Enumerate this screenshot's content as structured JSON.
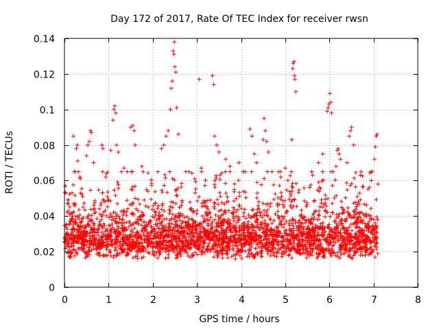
{
  "chart_data": {
    "type": "scatter",
    "title": "Day 172 of 2017, Rate Of TEC Index for receiver rwsn",
    "xlabel": "GPS time / hours",
    "ylabel": "ROTI / TECUs",
    "xlim": [
      0,
      8
    ],
    "ylim": [
      0,
      0.14
    ],
    "xticks": [
      "0",
      "1",
      "2",
      "3",
      "4",
      "5",
      "6",
      "7",
      "8"
    ],
    "yticks": [
      "0",
      "0.02",
      "0.04",
      "0.06",
      "0.08",
      "0.1",
      "0.12",
      "0.14"
    ],
    "xtick_values": [
      0,
      1,
      2,
      3,
      4,
      5,
      6,
      7,
      8
    ],
    "ytick_values": [
      0,
      0.02,
      0.04,
      0.06,
      0.08,
      0.1,
      0.12,
      0.14
    ],
    "grid": true,
    "series": [
      {
        "name": "ROTI",
        "marker": "plus",
        "color": "#ff0000",
        "bulk_x_range": [
          0.0,
          7.1
        ],
        "bulk_baseline_y": 0.022,
        "bulk_min_y": 0.009,
        "bulk_max_y": 0.065,
        "point_count_estimate": 3000,
        "notable_points": [
          {
            "x": 0.02,
            "y": 0.057
          },
          {
            "x": 0.03,
            "y": 0.053
          },
          {
            "x": 0.08,
            "y": 0.049
          },
          {
            "x": 0.12,
            "y": 0.041
          },
          {
            "x": 0.2,
            "y": 0.085
          },
          {
            "x": 0.22,
            "y": 0.065
          },
          {
            "x": 0.27,
            "y": 0.078
          },
          {
            "x": 0.29,
            "y": 0.08
          },
          {
            "x": 0.3,
            "y": 0.071
          },
          {
            "x": 0.35,
            "y": 0.062
          },
          {
            "x": 0.5,
            "y": 0.074
          },
          {
            "x": 0.53,
            "y": 0.08
          },
          {
            "x": 0.56,
            "y": 0.082
          },
          {
            "x": 0.59,
            "y": 0.088
          },
          {
            "x": 0.61,
            "y": 0.087
          },
          {
            "x": 0.66,
            "y": 0.07
          },
          {
            "x": 0.85,
            "y": 0.08
          },
          {
            "x": 0.87,
            "y": 0.078
          },
          {
            "x": 1.05,
            "y": 0.077
          },
          {
            "x": 1.1,
            "y": 0.094
          },
          {
            "x": 1.12,
            "y": 0.1
          },
          {
            "x": 1.14,
            "y": 0.102
          },
          {
            "x": 1.16,
            "y": 0.098
          },
          {
            "x": 1.18,
            "y": 0.08
          },
          {
            "x": 1.22,
            "y": 0.076
          },
          {
            "x": 1.35,
            "y": 0.067
          },
          {
            "x": 1.42,
            "y": 0.065
          },
          {
            "x": 1.5,
            "y": 0.09
          },
          {
            "x": 1.55,
            "y": 0.091
          },
          {
            "x": 1.58,
            "y": 0.088
          },
          {
            "x": 1.6,
            "y": 0.08
          },
          {
            "x": 1.75,
            "y": 0.068
          },
          {
            "x": 2.2,
            "y": 0.078
          },
          {
            "x": 2.25,
            "y": 0.08
          },
          {
            "x": 2.3,
            "y": 0.085
          },
          {
            "x": 2.35,
            "y": 0.088
          },
          {
            "x": 2.4,
            "y": 0.1
          },
          {
            "x": 2.42,
            "y": 0.112
          },
          {
            "x": 2.44,
            "y": 0.116
          },
          {
            "x": 2.46,
            "y": 0.133
          },
          {
            "x": 2.48,
            "y": 0.131
          },
          {
            "x": 2.49,
            "y": 0.138
          },
          {
            "x": 2.5,
            "y": 0.124
          },
          {
            "x": 2.52,
            "y": 0.121
          },
          {
            "x": 2.54,
            "y": 0.101
          },
          {
            "x": 2.58,
            "y": 0.086
          },
          {
            "x": 2.75,
            "y": 0.065
          },
          {
            "x": 3.05,
            "y": 0.117
          },
          {
            "x": 3.1,
            "y": 0.067
          },
          {
            "x": 3.35,
            "y": 0.119
          },
          {
            "x": 3.38,
            "y": 0.114
          },
          {
            "x": 3.4,
            "y": 0.085
          },
          {
            "x": 3.45,
            "y": 0.08
          },
          {
            "x": 3.5,
            "y": 0.076
          },
          {
            "x": 3.65,
            "y": 0.072
          },
          {
            "x": 3.75,
            "y": 0.068
          },
          {
            "x": 3.95,
            "y": 0.07
          },
          {
            "x": 4.05,
            "y": 0.065
          },
          {
            "x": 4.2,
            "y": 0.089
          },
          {
            "x": 4.25,
            "y": 0.085
          },
          {
            "x": 4.3,
            "y": 0.075
          },
          {
            "x": 4.35,
            "y": 0.07
          },
          {
            "x": 4.5,
            "y": 0.083
          },
          {
            "x": 4.52,
            "y": 0.095
          },
          {
            "x": 4.55,
            "y": 0.088
          },
          {
            "x": 4.58,
            "y": 0.082
          },
          {
            "x": 4.62,
            "y": 0.076
          },
          {
            "x": 4.7,
            "y": 0.065
          },
          {
            "x": 4.85,
            "y": 0.065
          },
          {
            "x": 4.9,
            "y": 0.062
          },
          {
            "x": 5.0,
            "y": 0.067
          },
          {
            "x": 5.15,
            "y": 0.083
          },
          {
            "x": 5.17,
            "y": 0.123
          },
          {
            "x": 5.18,
            "y": 0.126
          },
          {
            "x": 5.2,
            "y": 0.127
          },
          {
            "x": 5.21,
            "y": 0.119
          },
          {
            "x": 5.22,
            "y": 0.117
          },
          {
            "x": 5.24,
            "y": 0.11
          },
          {
            "x": 5.6,
            "y": 0.065
          },
          {
            "x": 5.62,
            "y": 0.063
          },
          {
            "x": 5.75,
            "y": 0.07
          },
          {
            "x": 5.85,
            "y": 0.075
          },
          {
            "x": 5.95,
            "y": 0.099
          },
          {
            "x": 5.97,
            "y": 0.101
          },
          {
            "x": 5.99,
            "y": 0.103
          },
          {
            "x": 6.01,
            "y": 0.109
          },
          {
            "x": 6.03,
            "y": 0.104
          },
          {
            "x": 6.05,
            "y": 0.098
          },
          {
            "x": 6.15,
            "y": 0.068
          },
          {
            "x": 6.18,
            "y": 0.077
          },
          {
            "x": 6.2,
            "y": 0.078
          },
          {
            "x": 6.22,
            "y": 0.075
          },
          {
            "x": 6.25,
            "y": 0.072
          },
          {
            "x": 6.4,
            "y": 0.07
          },
          {
            "x": 6.45,
            "y": 0.085
          },
          {
            "x": 6.48,
            "y": 0.088
          },
          {
            "x": 6.5,
            "y": 0.09
          },
          {
            "x": 6.55,
            "y": 0.08
          },
          {
            "x": 6.7,
            "y": 0.063
          },
          {
            "x": 6.95,
            "y": 0.06
          },
          {
            "x": 7.02,
            "y": 0.072
          },
          {
            "x": 7.04,
            "y": 0.079
          },
          {
            "x": 7.06,
            "y": 0.085
          },
          {
            "x": 7.08,
            "y": 0.086
          },
          {
            "x": 7.1,
            "y": 0.058
          }
        ]
      }
    ]
  }
}
